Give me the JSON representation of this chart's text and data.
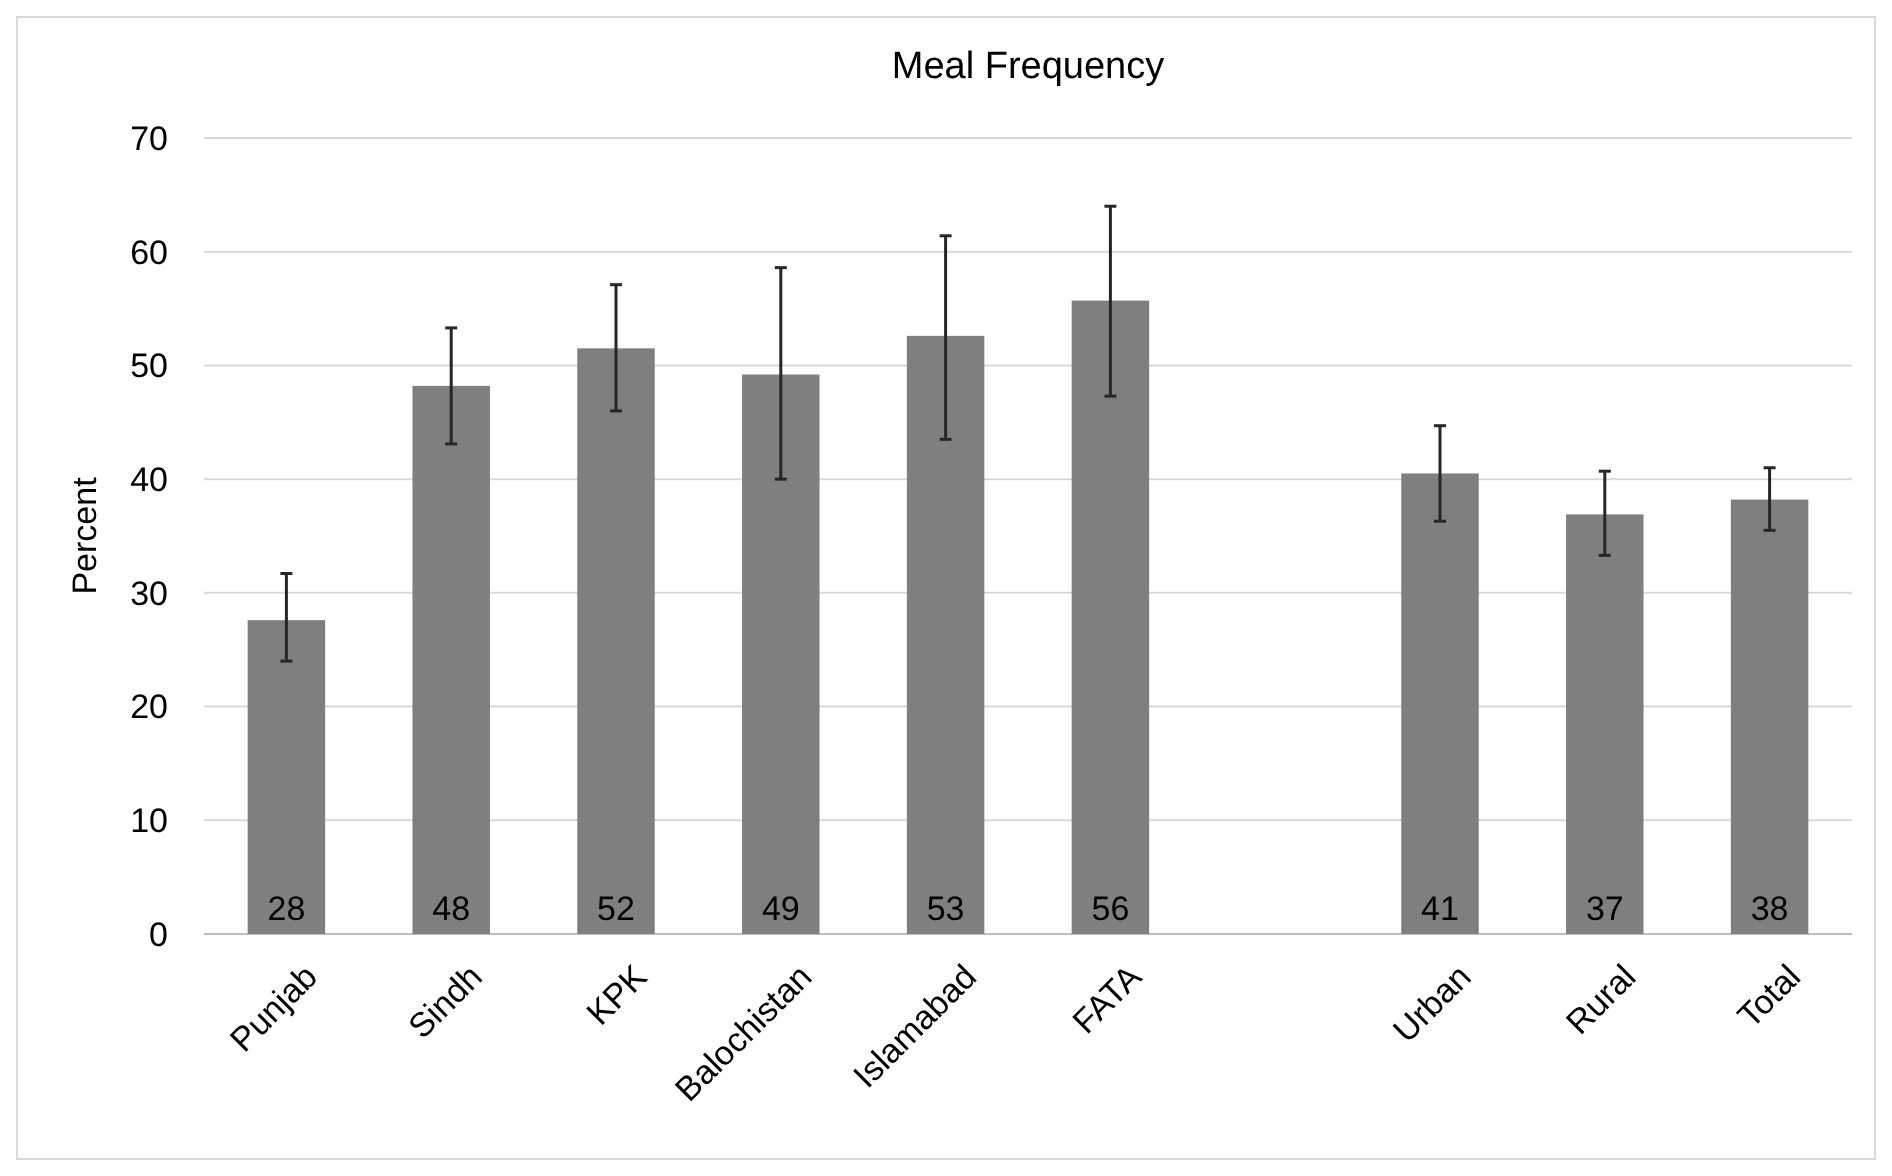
{
  "chart_data": {
    "type": "bar",
    "title": "Meal Frequency",
    "ylabel": "Percent",
    "categories": [
      "Punjab",
      "Sindh",
      "KPK",
      "Balochistan",
      "Islamabad",
      "FATA",
      null,
      "Urban",
      "Rural",
      "Total"
    ],
    "values": [
      27.6,
      48.2,
      51.5,
      49.2,
      52.6,
      55.7,
      null,
      40.5,
      36.9,
      38.2
    ],
    "errors": [
      [
        24.0,
        31.7
      ],
      [
        43.1,
        53.3
      ],
      [
        46.0,
        57.1
      ],
      [
        40.0,
        58.6
      ],
      [
        43.5,
        61.4
      ],
      [
        47.3,
        64.0
      ],
      null,
      [
        36.3,
        44.7
      ],
      [
        33.3,
        40.7
      ],
      [
        35.5,
        41.0
      ]
    ],
    "value_labels": [
      "28",
      "48",
      "52",
      "49",
      "53",
      "56",
      null,
      "41",
      "37",
      "38"
    ],
    "color": "#7f7f7f",
    "ylim": [
      0,
      70
    ],
    "yticks": [
      0,
      10,
      20,
      30,
      40,
      50,
      60,
      70
    ],
    "grid": "y"
  }
}
